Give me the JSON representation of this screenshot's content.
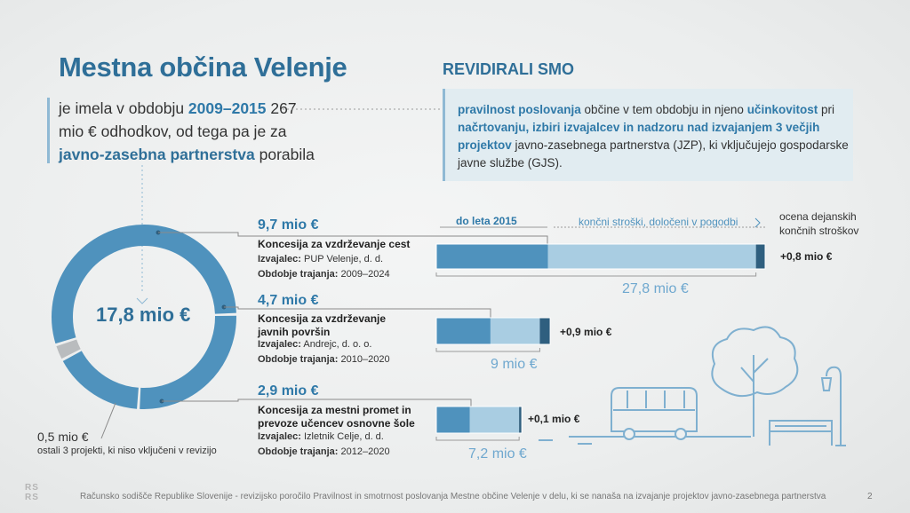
{
  "title": "Mestna občina Velenje",
  "intro": {
    "part1": "je imela v obdobju ",
    "period": "2009–2015",
    "part2": " 267 mio € odhodkov, od tega pa je za ",
    "ppp": "javno-zasebna partnerstva",
    "part3": " porabila"
  },
  "revision": {
    "heading": "REVIDIRALI SMO",
    "hl1": "pravilnost poslovanja",
    "t1": " občine v tem obdobju in njeno ",
    "hl2": "učinkovitost",
    "t2": " pri ",
    "hl3": "načrtovanju, izbiri izvajalcev in nadzoru nad izvajanjem",
    "t3": " ",
    "hl4": "3 večjih projektov",
    "t4": " javno-zasebnega partnerstva (JZP), ki vključujejo gospodarske javne službe (GJS)."
  },
  "donut": {
    "total_label": "17,8 mio €",
    "segments": [
      9.7,
      4.7,
      2.9,
      0.5
    ],
    "colors": [
      "#4f92bd",
      "#4f92bd",
      "#4f92bd",
      "#b9bcbe"
    ],
    "other_amount": "0,5 mio €",
    "other_desc": "ostali 3 projekti, ki niso vključeni v revizijo"
  },
  "column_headers": {
    "until_2015": "do leta 2015",
    "final_costs": "končni stroški, določeni v pogodbi",
    "est_line1": "ocena dejanskih",
    "est_line2": "končnih stroškov"
  },
  "meta_labels": {
    "contractor": "Izvajalec:",
    "period": "Obdobje trajanja:"
  },
  "projects": [
    {
      "amount": "9,7 mio €",
      "title": "Koncesija za vzdrževanje cest",
      "contractor": "PUP Velenje, d. d.",
      "period": "2009–2024",
      "until_2015": 9.7,
      "final_costs": 27.8,
      "final_label": "27,8 mio €",
      "extra": 0.8,
      "extra_label": "+0,8 mio €"
    },
    {
      "amount": "4,7 mio €",
      "title": "Koncesija za vzdrževanje javnih površin",
      "contractor": "Andrejc, d. o. o.",
      "period": "2010–2020",
      "until_2015": 4.7,
      "final_costs": 9,
      "final_label": "9 mio €",
      "extra": 0.9,
      "extra_label": "+0,9 mio €"
    },
    {
      "amount": "2,9 mio €",
      "title": "Koncesija za mestni promet in prevoze učencev osnovne šole",
      "contractor": "Izletnik Celje, d. d.",
      "period": "2012–2020",
      "until_2015": 2.9,
      "final_costs": 7.2,
      "final_label": "7,2 mio €",
      "extra": 0.1,
      "extra_label": "+0,1 mio €"
    }
  ],
  "footer": {
    "text": "Računsko sodišče Republike Slovenije - revizijsko poročilo Pravilnost in smotrnost poslovanja Mestne občine Velenje v delu, ki se nanaša na izvajanje projektov javno-zasebnega partnerstva",
    "page": "2",
    "logo_line1": "RS",
    "logo_line2": "RS"
  },
  "colors": {
    "accent": "#2f79a8",
    "bar_dark": "#4f92bd",
    "bar_light": "#a9cde2",
    "bar_cap": "#2f5f7f",
    "illustration": "#7fb0d0"
  }
}
